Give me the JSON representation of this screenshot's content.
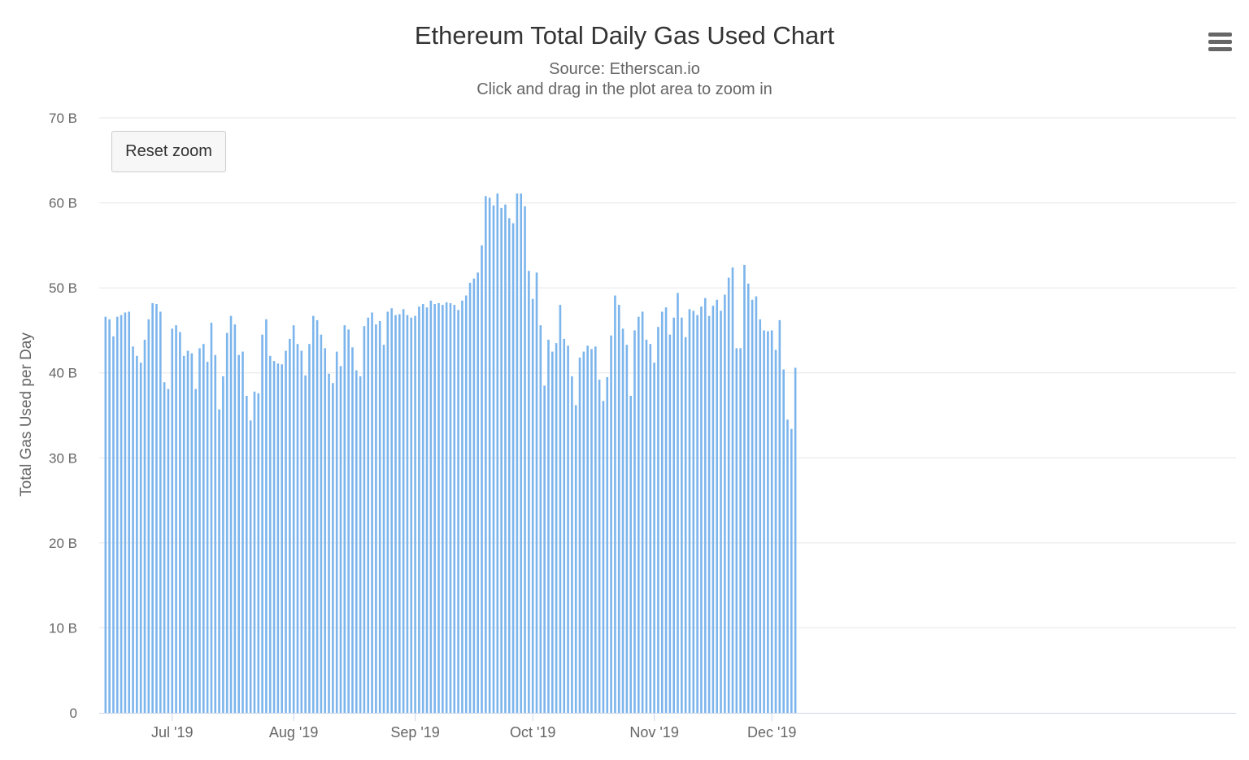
{
  "chart": {
    "title": "Ethereum Total Daily Gas Used Chart",
    "subtitle": "Source: Etherscan.io",
    "hint": "Click and drag in the plot area to zoom in",
    "reset_label": "Reset zoom",
    "menu_icon": "hamburger-menu-icon"
  },
  "colors": {
    "bar": "#7cb5ec",
    "grid": "#e6e6e6",
    "axis": "#ccd6eb"
  },
  "chart_data": {
    "type": "bar",
    "title": "Ethereum Total Daily Gas Used Chart",
    "subtitle": "Source: Etherscan.io",
    "xlabel": "",
    "ylabel": "Total Gas Used per Day",
    "ylim": [
      0,
      70
    ],
    "y_unit": "B",
    "y_ticks": [
      "0",
      "10 B",
      "20 B",
      "30 B",
      "40 B",
      "50 B",
      "60 B",
      "70 B"
    ],
    "x_ticks": [
      "Jul '19",
      "Aug '19",
      "Sep '19",
      "Oct '19",
      "Nov '19",
      "Dec '19"
    ],
    "x_start": "2019-06-14",
    "x_end": "2019-12-09",
    "grid": true,
    "legend": "none",
    "series": [
      {
        "values": [
          46.6,
          46.3,
          44.3,
          46.6,
          46.8,
          47.1,
          47.2,
          43.1,
          42.0,
          41.2,
          43.9,
          46.3,
          48.2,
          48.1,
          47.2,
          38.9,
          38.1,
          45.2,
          45.6,
          44.8,
          42.0,
          42.6,
          42.3,
          38.1,
          42.9,
          43.4,
          41.3,
          45.9,
          42.1,
          35.7,
          39.6,
          44.7,
          46.7,
          45.7,
          42.1,
          42.5,
          37.3,
          34.4,
          37.8,
          37.6,
          44.5,
          46.3,
          42.0,
          41.4,
          41.1,
          41.0,
          42.6,
          44.0,
          45.6,
          43.4,
          42.6,
          39.7,
          43.4,
          46.7,
          46.2,
          44.5,
          42.9,
          39.9,
          38.8,
          42.5,
          40.8,
          45.6,
          45.1,
          43.0,
          40.3,
          39.6,
          45.5,
          46.5,
          47.1,
          45.7,
          46.1,
          43.3,
          47.2,
          47.6,
          46.8,
          46.9,
          47.5,
          46.8,
          46.5,
          46.7,
          47.8,
          48.1,
          47.7,
          48.5,
          48.1,
          48.2,
          48.0,
          48.3,
          48.2,
          48.0,
          47.4,
          48.5,
          49.1,
          50.6,
          51.1,
          51.8,
          55.0,
          60.8,
          60.6,
          59.7,
          61.1,
          59.4,
          59.8,
          58.2,
          57.6,
          61.1,
          61.1,
          59.6,
          52.0,
          48.7,
          51.8,
          45.6,
          38.5,
          43.9,
          42.5,
          43.5,
          48.0,
          44.0,
          43.2,
          39.6,
          36.2,
          41.8,
          42.5,
          43.2,
          42.8,
          43.1,
          39.2,
          36.7,
          39.5,
          44.4,
          49.1,
          48.0,
          45.2,
          43.3,
          37.3,
          45.0,
          46.6,
          47.2,
          43.9,
          43.4,
          41.2,
          45.4,
          47.2,
          47.7,
          44.5,
          46.5,
          49.4,
          46.5,
          44.2,
          47.5,
          47.3,
          46.8,
          47.8,
          48.8,
          46.7,
          47.9,
          48.6,
          47.3,
          49.2,
          51.2,
          52.4,
          42.9,
          42.9,
          52.7,
          50.5,
          48.6,
          49.0,
          46.3,
          45.0,
          44.9,
          45.0,
          42.7,
          46.2,
          40.4,
          34.5,
          33.4,
          40.6
        ]
      }
    ]
  }
}
